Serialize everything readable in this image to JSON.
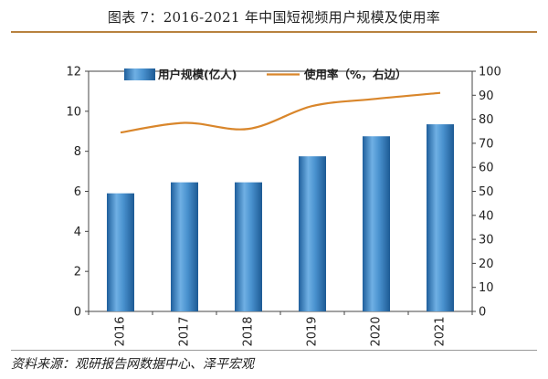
{
  "title": "图表 7：2016-2021 年中国短视频用户规模及使用率",
  "source": "资料来源：观研报告网数据中心、泽平宏观",
  "colors": {
    "bar": "#3a86c8",
    "line": "#d9862b",
    "title_rule": "#b8823f"
  },
  "chart_data": {
    "type": "bar",
    "categories": [
      "2016",
      "2017",
      "2018",
      "2019",
      "2020",
      "2021"
    ],
    "series": [
      {
        "name": "用户规模(亿人)",
        "type": "bar",
        "axis": "left",
        "values": [
          5.9,
          6.45,
          6.45,
          7.75,
          8.75,
          9.35
        ]
      },
      {
        "name": "使用率（%，右边）",
        "type": "line",
        "axis": "right",
        "values": [
          74.5,
          78.5,
          76,
          85.5,
          88.5,
          91
        ]
      }
    ],
    "ylim_left": [
      0,
      12
    ],
    "yticks_left": [
      0,
      2,
      4,
      6,
      8,
      10,
      12
    ],
    "ylim_right": [
      0,
      100
    ],
    "yticks_right": [
      0,
      10,
      20,
      30,
      40,
      50,
      60,
      70,
      80,
      90,
      100
    ],
    "legend": {
      "placement": "top"
    },
    "grid": false
  }
}
